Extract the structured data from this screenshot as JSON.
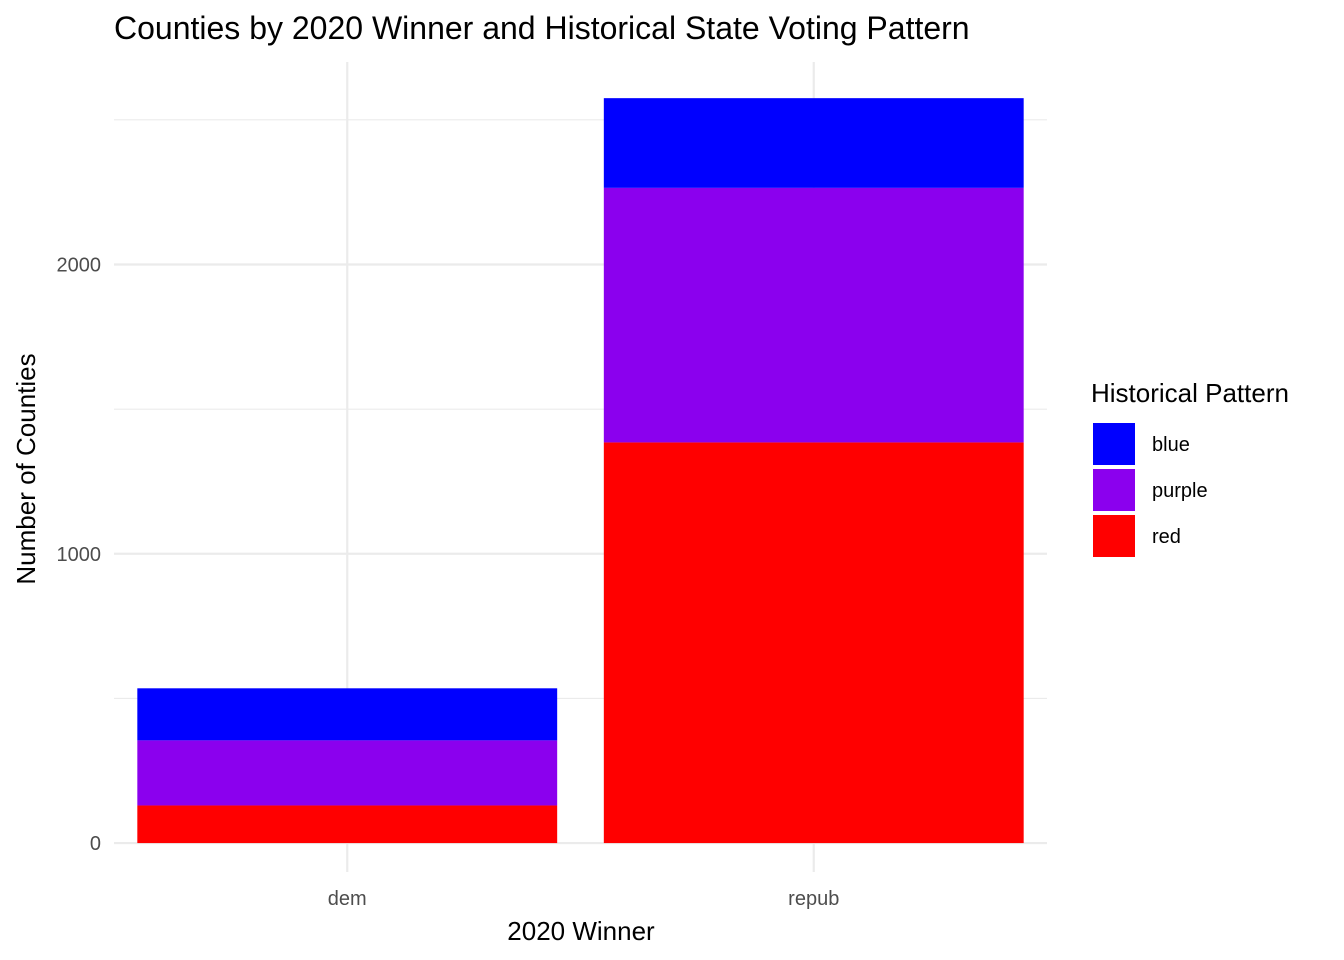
{
  "chart_data": {
    "type": "bar",
    "stacked": true,
    "title": "Counties by 2020 Winner and Historical State Voting Pattern",
    "xlabel": "2020 Winner",
    "ylabel": "Number of Counties",
    "categories": [
      "dem",
      "repub"
    ],
    "series": [
      {
        "name": "red",
        "color": "#ff0000",
        "values": [
          130,
          1385
        ]
      },
      {
        "name": "purple",
        "color": "#8b00ee",
        "values": [
          225,
          880
        ]
      },
      {
        "name": "blue",
        "color": "#0000ff",
        "values": [
          180,
          310
        ]
      }
    ],
    "ylim": [
      -100,
      2700
    ],
    "yticks": [
      0,
      1000,
      2000
    ],
    "grid": true,
    "legend": {
      "title": "Historical Pattern",
      "placement": "right",
      "items": [
        "blue",
        "purple",
        "red"
      ]
    }
  }
}
